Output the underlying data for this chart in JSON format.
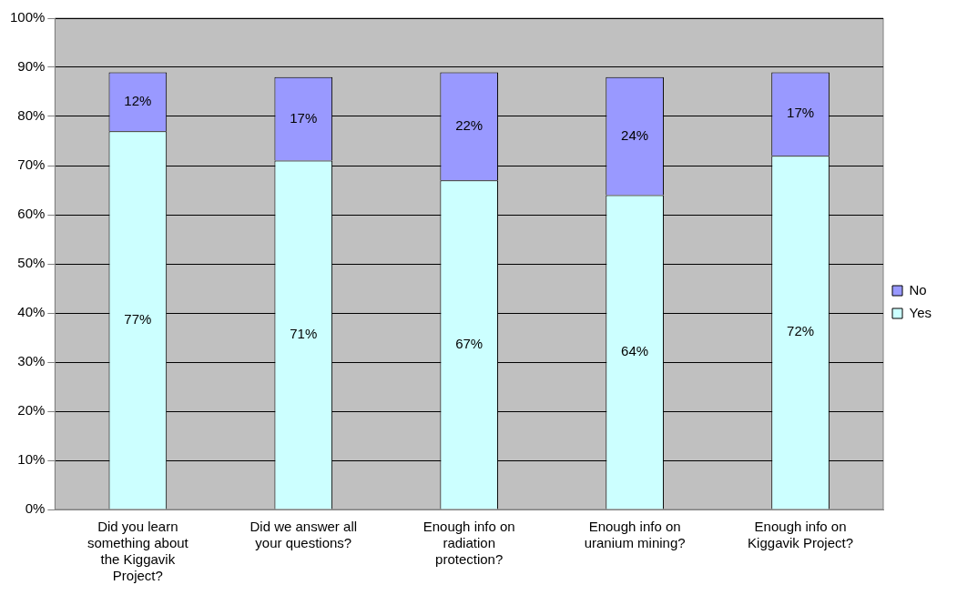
{
  "chart_data": {
    "type": "bar",
    "stacked": true,
    "categories": [
      "Did you learn something about the Kiggavik Project?",
      "Did we answer all your questions?",
      "Enough info on radiation protection?",
      "Enough info on uranium mining?",
      "Enough info on Kiggavik Project?"
    ],
    "series": [
      {
        "name": "Yes",
        "color": "#ccffff",
        "values": [
          77,
          71,
          67,
          64,
          72
        ],
        "value_labels": [
          "77%",
          "71%",
          "67%",
          "64%",
          "72%"
        ]
      },
      {
        "name": "No",
        "color": "#9999ff",
        "values": [
          12,
          17,
          22,
          24,
          17
        ],
        "value_labels": [
          "12%",
          "17%",
          "22%",
          "24%",
          "17%"
        ]
      }
    ],
    "ylim": [
      0,
      100
    ],
    "yticks": [
      {
        "value": 0,
        "label": "0%"
      },
      {
        "value": 10,
        "label": "10%"
      },
      {
        "value": 20,
        "label": "20%"
      },
      {
        "value": 30,
        "label": "30%"
      },
      {
        "value": 40,
        "label": "40%"
      },
      {
        "value": 50,
        "label": "50%"
      },
      {
        "value": 60,
        "label": "60%"
      },
      {
        "value": 70,
        "label": "70%"
      },
      {
        "value": 80,
        "label": "80%"
      },
      {
        "value": 90,
        "label": "90%"
      },
      {
        "value": 100,
        "label": "100%"
      }
    ],
    "grid": "y",
    "legend": "right"
  }
}
